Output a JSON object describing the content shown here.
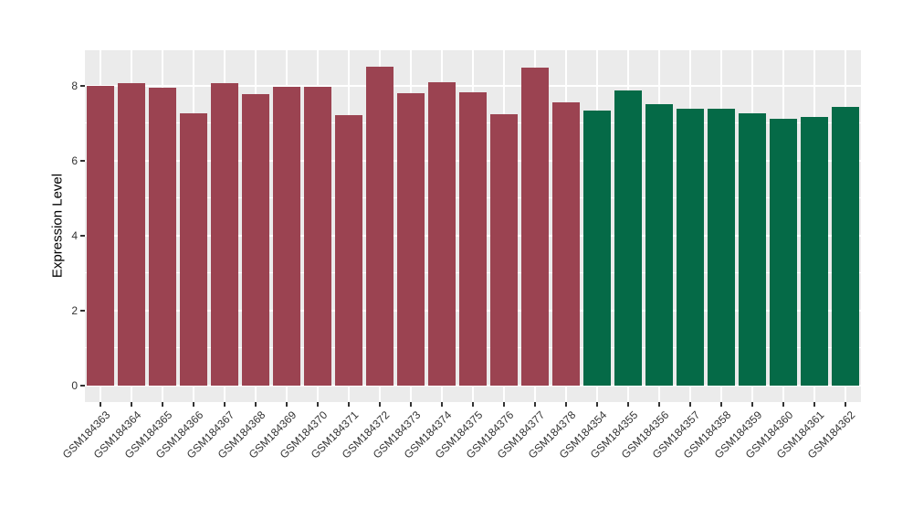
{
  "chart_data": {
    "type": "bar",
    "title": "",
    "xlabel": "",
    "ylabel": "Expression Level",
    "ylim": [
      -0.44,
      8.95
    ],
    "yticks": [
      0,
      2,
      4,
      6,
      8
    ],
    "yminor": [
      1,
      3,
      5,
      7
    ],
    "grid": true,
    "legend": "none",
    "panel_bg": "#EBEBEB",
    "grid_color": "#FFFFFF",
    "tick_color": "#333333",
    "axis_text_color": "#333333",
    "axis_title_color": "#000000",
    "bar_width_fraction": 0.9,
    "series": [
      {
        "name": "maroon",
        "color": "#9B4351",
        "categories": [
          "GSM184363",
          "GSM184364",
          "GSM184365",
          "GSM184366",
          "GSM184367",
          "GSM184368",
          "GSM184369",
          "GSM184370",
          "GSM184371",
          "GSM184372",
          "GSM184373",
          "GSM184374",
          "GSM184375",
          "GSM184376",
          "GSM184377",
          "GSM184378"
        ],
        "values": [
          8.0,
          8.07,
          7.95,
          7.27,
          8.06,
          7.79,
          7.97,
          7.97,
          7.21,
          8.52,
          7.81,
          8.1,
          7.84,
          7.25,
          8.48,
          7.56
        ]
      },
      {
        "name": "green",
        "color": "#056A47",
        "categories": [
          "GSM184354",
          "GSM184355",
          "GSM184356",
          "GSM184357",
          "GSM184358",
          "GSM184359",
          "GSM184360",
          "GSM184361",
          "GSM184362"
        ],
        "values": [
          7.35,
          7.88,
          7.52,
          7.4,
          7.4,
          7.27,
          7.12,
          7.16,
          7.43
        ]
      }
    ]
  }
}
